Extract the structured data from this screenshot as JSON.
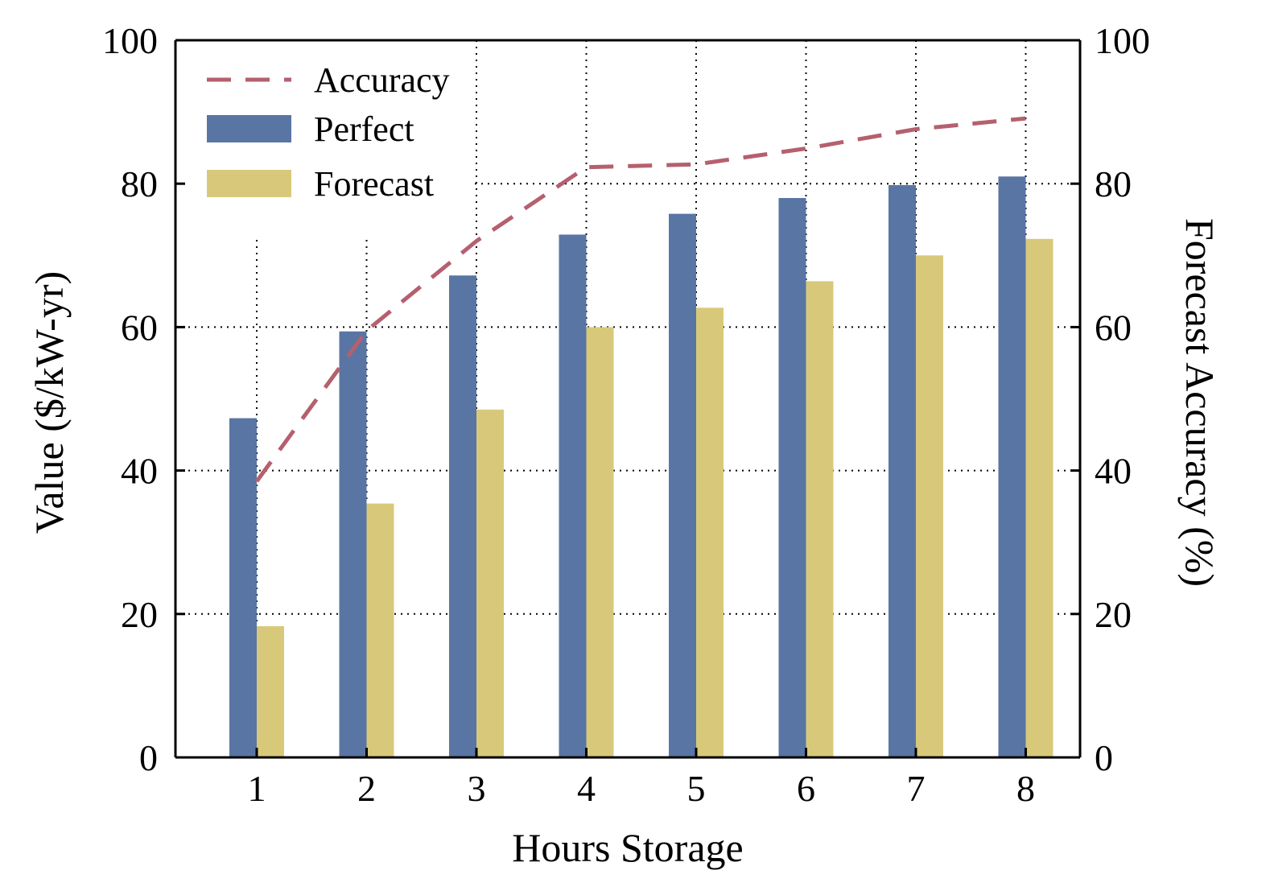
{
  "chart_data": {
    "type": "bar",
    "categories": [
      "1",
      "2",
      "3",
      "4",
      "5",
      "6",
      "7",
      "8"
    ],
    "series": [
      {
        "name": "Perfect",
        "type": "bar",
        "axis": "left",
        "color": "#5975a4",
        "values": [
          47.3,
          59.4,
          67.2,
          72.9,
          75.8,
          78.0,
          79.8,
          81.0
        ]
      },
      {
        "name": "Forecast",
        "type": "bar",
        "axis": "left",
        "color": "#d8c97a",
        "values": [
          18.3,
          35.4,
          48.5,
          60.0,
          62.7,
          66.4,
          70.0,
          72.3
        ]
      },
      {
        "name": "Accuracy",
        "type": "line",
        "axis": "right",
        "color": "#b5606e",
        "dashed": true,
        "values": [
          38.5,
          59.5,
          72.0,
          82.3,
          82.7,
          84.9,
          87.6,
          89.1
        ]
      }
    ],
    "xlabel": "Hours Storage",
    "ylabel": "Value ($/kW-yr)",
    "y2label": "Forecast Accuracy (%)",
    "ylim": [
      0,
      100
    ],
    "y2lim": [
      0,
      100
    ],
    "yticks": [
      0,
      20,
      40,
      60,
      80,
      100
    ],
    "y2ticks": [
      0,
      20,
      40,
      60,
      80,
      100
    ],
    "grid": "dotted",
    "legend": "top-left",
    "legend_order": [
      "Accuracy",
      "Perfect",
      "Forecast"
    ]
  }
}
